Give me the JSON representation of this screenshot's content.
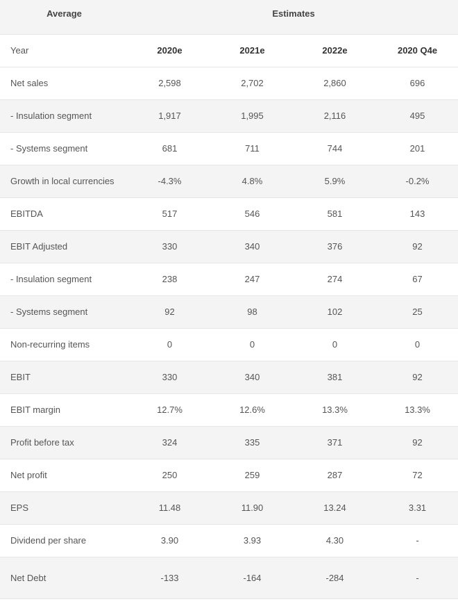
{
  "header": {
    "average": "Average",
    "estimates": "Estimates"
  },
  "columns": {
    "label": "Year",
    "years": [
      "2020e",
      "2021e",
      "2022e",
      "2020 Q4e"
    ]
  },
  "rows": [
    {
      "label": "Net sales",
      "values": [
        "2,598",
        "2,702",
        "2,860",
        "696"
      ]
    },
    {
      "label": " - Insulation segment",
      "values": [
        "1,917",
        "1,995",
        "2,116",
        "495"
      ]
    },
    {
      "label": " - Systems segment",
      "values": [
        "681",
        "711",
        "744",
        "201"
      ]
    },
    {
      "label": "Growth in local currencies",
      "values": [
        "-4.3%",
        "4.8%",
        "5.9%",
        "-0.2%"
      ]
    },
    {
      "label": "EBITDA",
      "values": [
        "517",
        "546",
        "581",
        "143"
      ]
    },
    {
      "label": "EBIT Adjusted",
      "values": [
        "330",
        "340",
        "376",
        "92"
      ]
    },
    {
      "label": "- Insulation segment",
      "values": [
        "238",
        "247",
        "274",
        "67"
      ]
    },
    {
      "label": " - Systems segment",
      "values": [
        "92",
        "98",
        "102",
        "25"
      ]
    },
    {
      "label": "Non-recurring items",
      "values": [
        "0",
        "0",
        "0",
        "0"
      ]
    },
    {
      "label": "EBIT",
      "values": [
        "330",
        "340",
        "381",
        "92"
      ]
    },
    {
      "label": "EBIT margin",
      "values": [
        "12.7%",
        "12.6%",
        "13.3%",
        "13.3%"
      ]
    },
    {
      "label": "Profit before tax",
      "values": [
        "324",
        "335",
        "371",
        "92"
      ]
    },
    {
      "label": "Net profit",
      "values": [
        "250",
        "259",
        "287",
        "72"
      ]
    },
    {
      "label": "EPS",
      "values": [
        "11.48",
        "11.90",
        "13.24",
        "3.31"
      ]
    },
    {
      "label": "Dividend per share",
      "values": [
        "3.90",
        "3.93",
        "4.30",
        "-"
      ]
    },
    {
      "label": "Net Debt",
      "values": [
        "-133",
        "-164",
        "-284",
        "-"
      ]
    }
  ]
}
